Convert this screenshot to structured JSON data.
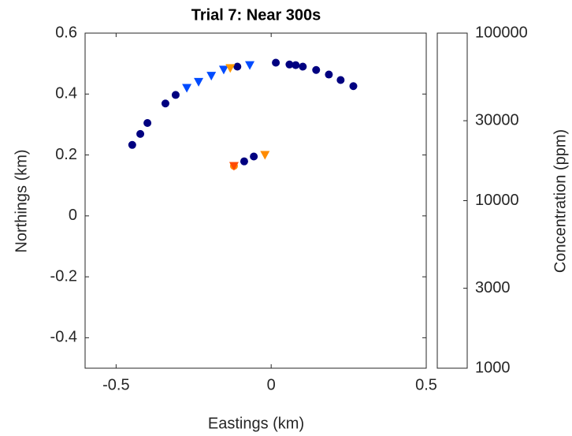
{
  "chart_data": {
    "type": "scatter",
    "title": "Trial 7: Near 300s",
    "x_label": "Eastings (km)",
    "y_label": "Northings (km)",
    "xlim": [
      -0.6,
      0.5
    ],
    "xticks": [
      -0.5,
      0,
      0.5
    ],
    "ylim": [
      -0.5,
      0.6
    ],
    "yticks": [
      -0.4,
      -0.2,
      0,
      0.2,
      0.4,
      0.6
    ],
    "colormap": "jet",
    "color_scale": "log",
    "colorbar_label": "Concentration (ppm)",
    "clim": [
      1000,
      100000
    ],
    "cticks": [
      1000,
      3000,
      10000,
      30000,
      100000
    ],
    "series": [
      {
        "marker": "o",
        "x": [
          -0.448,
          -0.422,
          -0.399,
          -0.341,
          -0.308,
          -0.109,
          0.015,
          0.059,
          0.079,
          0.102,
          0.145,
          0.186,
          0.224,
          0.265,
          -0.087,
          -0.056,
          -0.12
        ],
        "values": [
          0.233,
          0.269,
          0.305,
          0.369,
          0.397,
          0.49,
          0.503,
          0.497,
          0.495,
          0.49,
          0.479,
          0.464,
          0.446,
          0.426,
          0.179,
          0.195,
          0.164
        ],
        "concentration": [
          1000,
          1000,
          1000,
          1000,
          1000,
          1000,
          1000,
          1000,
          1000,
          1000,
          1000,
          1000,
          1000,
          1000,
          1000,
          1000,
          30000
        ]
      },
      {
        "marker": "v",
        "x": [
          -0.272,
          -0.234,
          -0.193,
          -0.153,
          -0.132,
          -0.069,
          -0.02,
          -0.12
        ],
        "values": [
          0.42,
          0.44,
          0.46,
          0.48,
          0.485,
          0.495,
          0.2,
          0.164
        ],
        "concentration": [
          2500,
          2500,
          2500,
          2500,
          28000,
          2500,
          30000,
          40000
        ]
      }
    ]
  }
}
